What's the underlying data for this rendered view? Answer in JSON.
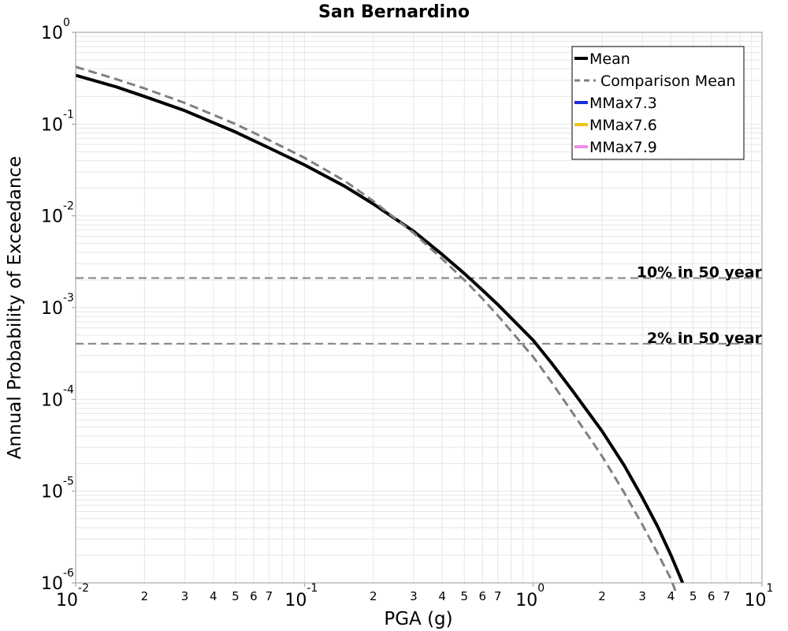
{
  "chart_data": {
    "type": "line",
    "title": "San Bernardino",
    "xlabel": "PGA (g)",
    "ylabel": "Annual Probability of Exceedance",
    "xscale": "log",
    "yscale": "log",
    "xlim": [
      0.01,
      10
    ],
    "ylim": [
      1e-06,
      1
    ],
    "grid": true,
    "legend_position": "top-right",
    "x_major_ticks": [
      {
        "base": "10",
        "exp": "-2",
        "value": 0.01
      },
      {
        "base": "10",
        "exp": "-1",
        "value": 0.1
      },
      {
        "base": "10",
        "exp": "0",
        "value": 1
      },
      {
        "base": "10",
        "exp": "1",
        "value": 10
      }
    ],
    "x_minor_labels": [
      "2",
      "3",
      "4",
      "5",
      "6",
      "7"
    ],
    "y_major_ticks": [
      {
        "base": "10",
        "exp": "0",
        "value": 1
      },
      {
        "base": "10",
        "exp": "-1",
        "value": 0.1
      },
      {
        "base": "10",
        "exp": "-2",
        "value": 0.01
      },
      {
        "base": "10",
        "exp": "-3",
        "value": 0.001
      },
      {
        "base": "10",
        "exp": "-4",
        "value": 0.0001
      },
      {
        "base": "10",
        "exp": "-5",
        "value": 1e-05
      },
      {
        "base": "10",
        "exp": "-6",
        "value": 1e-06
      }
    ],
    "series": [
      {
        "name": "Mean",
        "color": "#000000",
        "style": "solid",
        "points": [
          [
            0.01,
            0.34
          ],
          [
            0.015,
            0.255
          ],
          [
            0.02,
            0.2
          ],
          [
            0.03,
            0.14
          ],
          [
            0.05,
            0.082
          ],
          [
            0.07,
            0.055
          ],
          [
            0.1,
            0.036
          ],
          [
            0.15,
            0.021
          ],
          [
            0.2,
            0.0135
          ],
          [
            0.3,
            0.0068
          ],
          [
            0.4,
            0.0038
          ],
          [
            0.5,
            0.00235
          ],
          [
            0.6,
            0.00155
          ],
          [
            0.7,
            0.00108
          ],
          [
            1.0,
            0.00044
          ],
          [
            1.2,
            0.00025
          ],
          [
            1.5,
            0.00012
          ],
          [
            2.0,
            4.5e-05
          ],
          [
            2.5,
            1.9e-05
          ],
          [
            3.0,
            8.5e-06
          ],
          [
            3.5,
            4.1e-06
          ],
          [
            4.0,
            2e-06
          ],
          [
            4.5,
            1e-06
          ]
        ]
      },
      {
        "name": "Comparison Mean",
        "color": "#808080",
        "style": "dashed",
        "points": [
          [
            0.01,
            0.42
          ],
          [
            0.015,
            0.31
          ],
          [
            0.02,
            0.245
          ],
          [
            0.03,
            0.17
          ],
          [
            0.05,
            0.1
          ],
          [
            0.07,
            0.067
          ],
          [
            0.1,
            0.043
          ],
          [
            0.15,
            0.024
          ],
          [
            0.2,
            0.0145
          ],
          [
            0.3,
            0.0065
          ],
          [
            0.4,
            0.0034
          ],
          [
            0.5,
            0.002
          ],
          [
            0.6,
            0.00125
          ],
          [
            0.7,
            0.00082
          ],
          [
            1.0,
            0.00029
          ],
          [
            1.2,
            0.000155
          ],
          [
            1.5,
            6.9e-05
          ],
          [
            2.0,
            2.4e-05
          ],
          [
            2.5,
            9.6e-06
          ],
          [
            3.0,
            4.3e-06
          ],
          [
            3.5,
            2.1e-06
          ],
          [
            4.0,
            1.1e-06
          ],
          [
            4.2,
            8e-07
          ]
        ]
      },
      {
        "name": "MMax7.3",
        "color": "#1a2fe0",
        "style": "solid",
        "points": []
      },
      {
        "name": "MMax7.6",
        "color": "#f0c419",
        "style": "solid",
        "points": []
      },
      {
        "name": "MMax7.9",
        "color": "#f08ce8",
        "style": "solid",
        "points": []
      }
    ],
    "reference_lines": [
      {
        "label": "10% in 50 year",
        "y": 0.0021,
        "color": "#808080"
      },
      {
        "label": "2% in 50 year",
        "y": 0.000404,
        "color": "#808080"
      }
    ]
  }
}
